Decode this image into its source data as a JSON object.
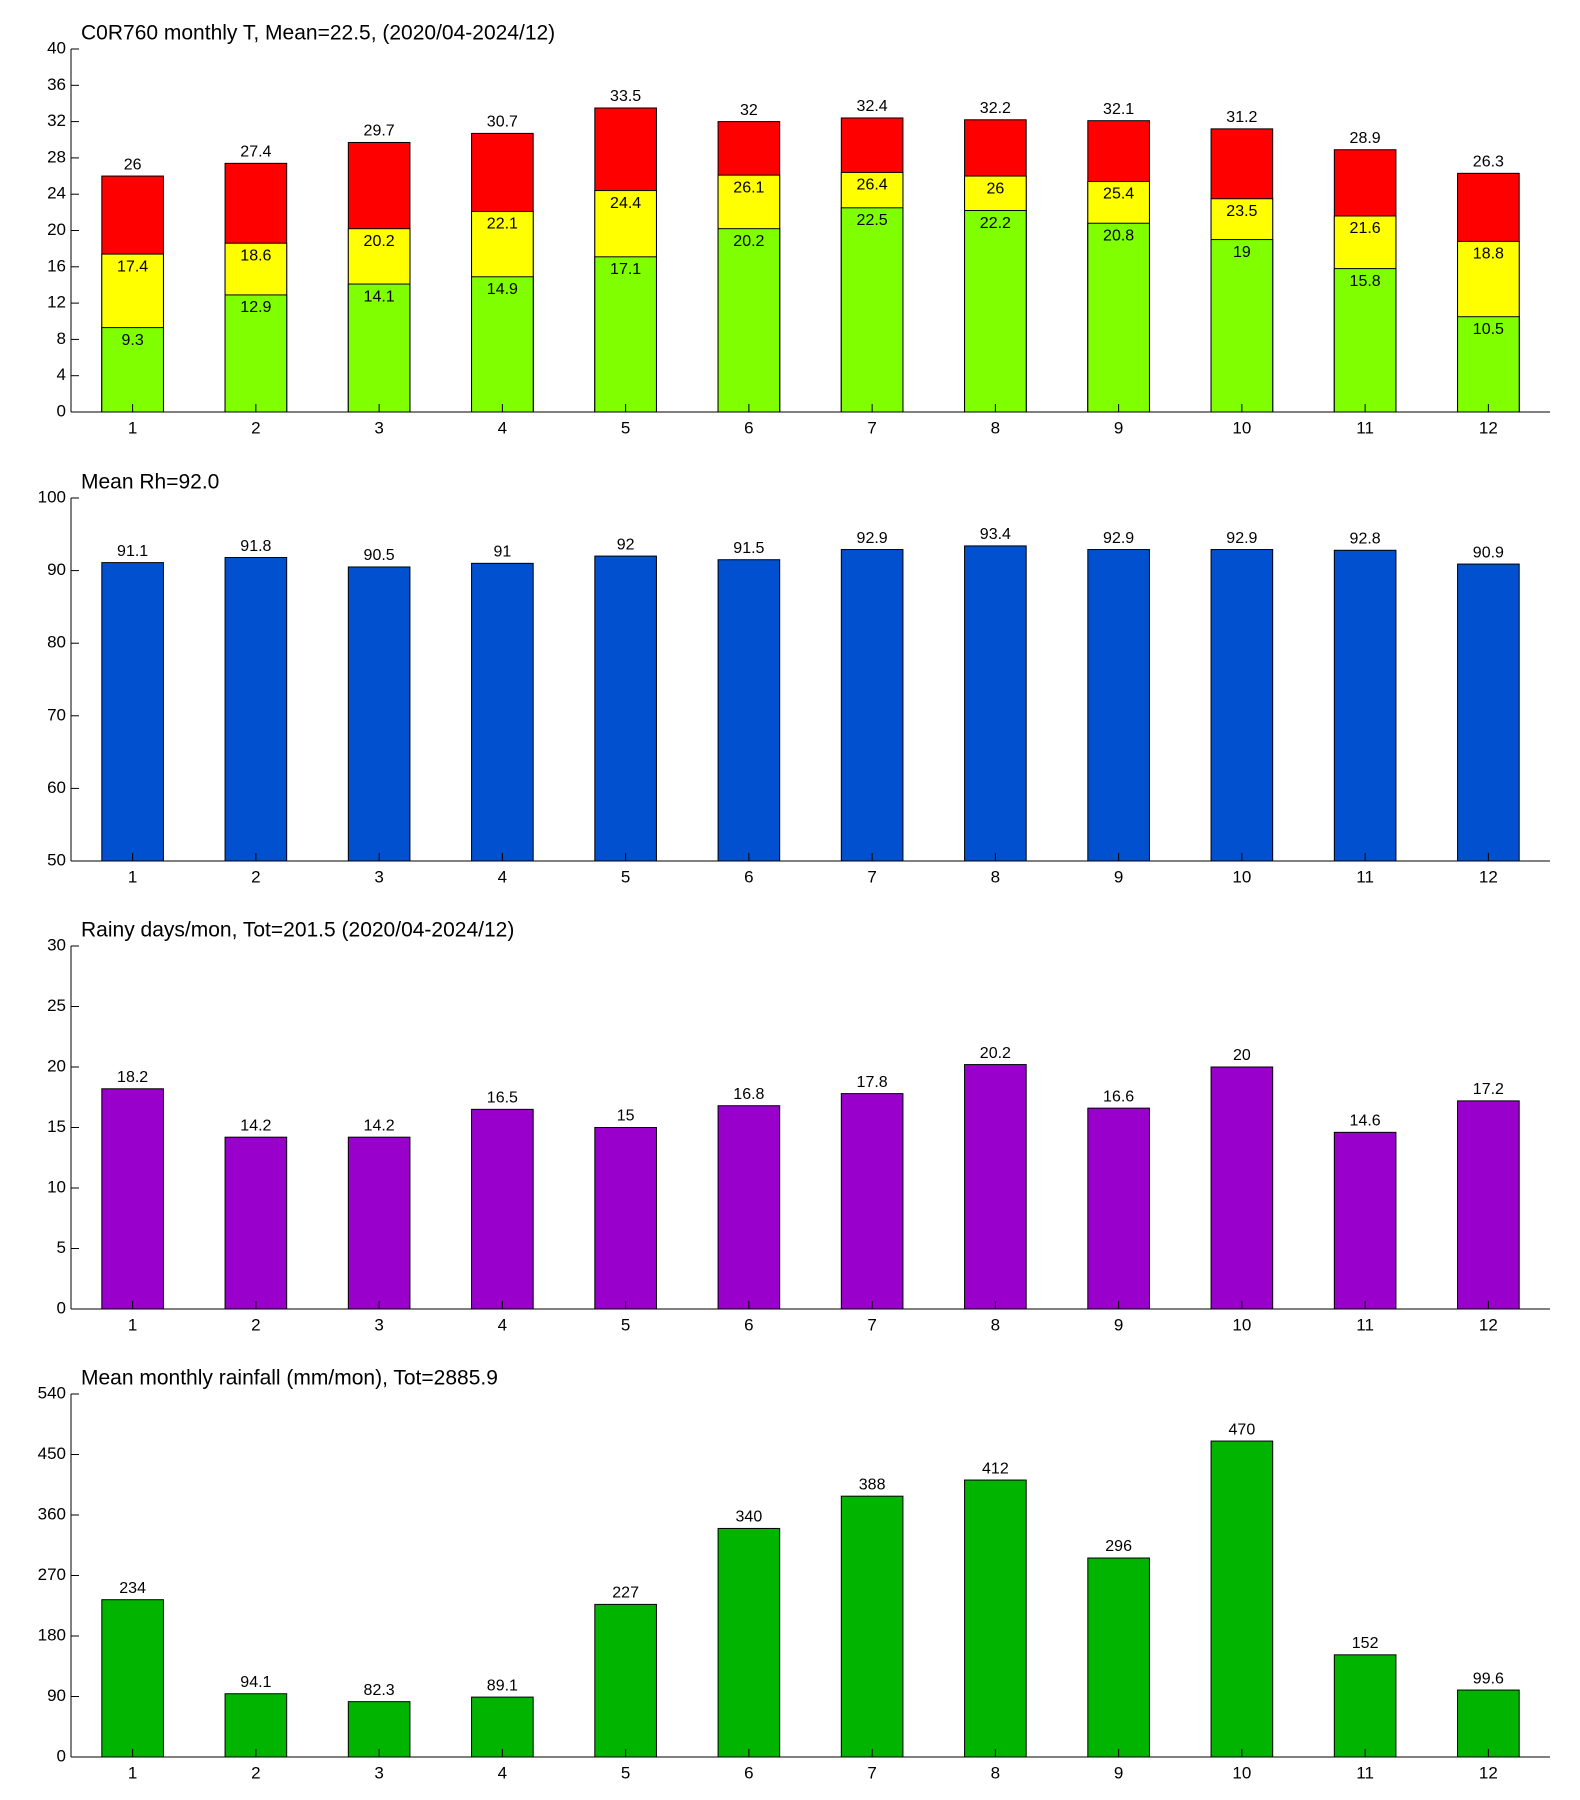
{
  "chart_data": [
    {
      "type": "bar",
      "title": "C0R760 monthly T, Mean=22.5, (2020/04-2024/12)",
      "categories": [
        "1",
        "2",
        "3",
        "4",
        "5",
        "6",
        "7",
        "8",
        "9",
        "10",
        "11",
        "12"
      ],
      "series": [
        {
          "color": "#ff0000",
          "values": [
            26,
            27.4,
            29.7,
            30.7,
            33.5,
            32,
            32.4,
            32.2,
            32.1,
            31.2,
            28.9,
            26.3
          ]
        },
        {
          "color": "#ffff00",
          "values": [
            17.4,
            18.6,
            20.2,
            22.1,
            24.4,
            26.1,
            26.4,
            26,
            25.4,
            23.5,
            21.6,
            18.8
          ]
        },
        {
          "color": "#80ff00",
          "values": [
            9.3,
            12.9,
            14.1,
            14.9,
            17.1,
            20.2,
            22.5,
            22.2,
            20.8,
            19,
            15.8,
            10.5
          ]
        }
      ],
      "ylim": [
        0,
        40
      ],
      "yticks": [
        0,
        4,
        8,
        12,
        16,
        20,
        24,
        28,
        32,
        36,
        40
      ]
    },
    {
      "type": "bar",
      "title": "Mean Rh=92.0",
      "categories": [
        "1",
        "2",
        "3",
        "4",
        "5",
        "6",
        "7",
        "8",
        "9",
        "10",
        "11",
        "12"
      ],
      "series": [
        {
          "color": "#0050d0",
          "values": [
            91.1,
            91.8,
            90.5,
            91,
            92,
            91.5,
            92.9,
            93.4,
            92.9,
            92.9,
            92.8,
            90.9
          ]
        }
      ],
      "ylim": [
        50,
        100
      ],
      "yticks": [
        50,
        60,
        70,
        80,
        90,
        100
      ]
    },
    {
      "type": "bar",
      "title": "Rainy days/mon, Tot=201.5 (2020/04-2024/12)",
      "categories": [
        "1",
        "2",
        "3",
        "4",
        "5",
        "6",
        "7",
        "8",
        "9",
        "10",
        "11",
        "12"
      ],
      "series": [
        {
          "color": "#9900cc",
          "values": [
            18.2,
            14.2,
            14.2,
            16.5,
            15,
            16.8,
            17.8,
            20.2,
            16.6,
            20,
            14.6,
            17.2
          ]
        }
      ],
      "ylim": [
        0,
        30
      ],
      "yticks": [
        0,
        5,
        10,
        15,
        20,
        25,
        30
      ]
    },
    {
      "type": "bar",
      "title": "Mean monthly rainfall (mm/mon), Tot=2885.9",
      "categories": [
        "1",
        "2",
        "3",
        "4",
        "5",
        "6",
        "7",
        "8",
        "9",
        "10",
        "11",
        "12"
      ],
      "series": [
        {
          "color": "#00b400",
          "values": [
            234,
            94.1,
            82.3,
            89.1,
            227,
            340,
            388,
            412,
            296,
            470,
            152,
            99.6
          ]
        }
      ],
      "ylim": [
        0,
        540
      ],
      "yticks": [
        0,
        90,
        180,
        270,
        360,
        450,
        540
      ]
    }
  ]
}
